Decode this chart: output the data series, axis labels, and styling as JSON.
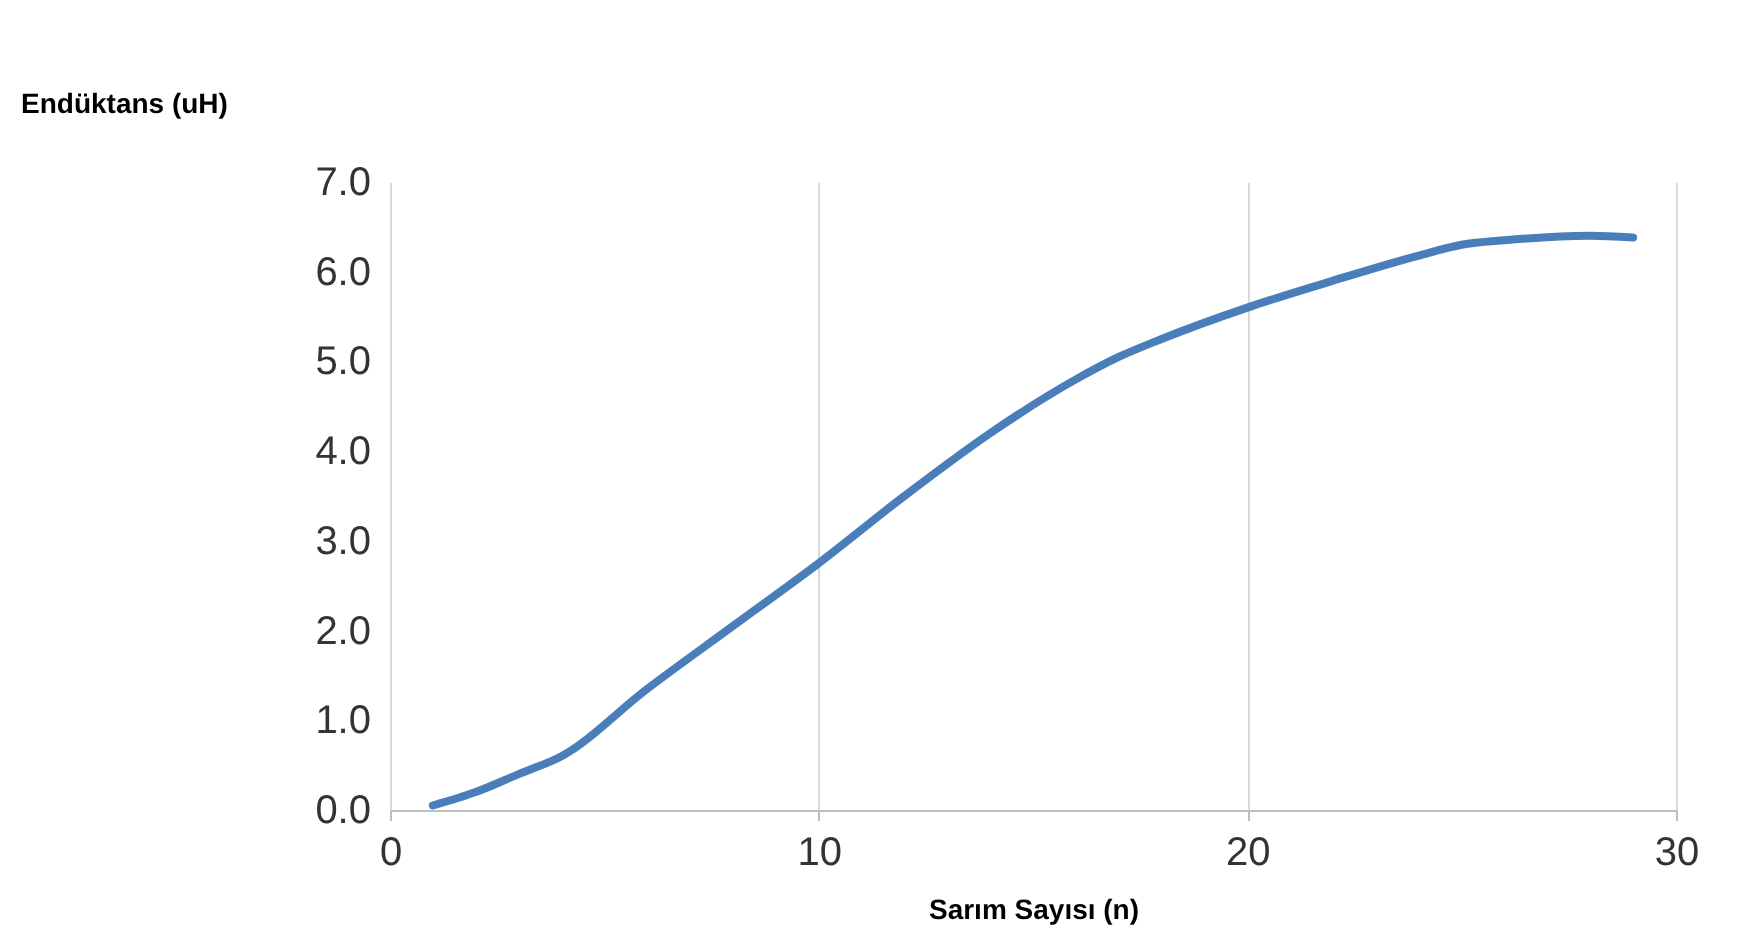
{
  "chart_data": {
    "type": "line",
    "xlabel": "Sarım Sayısı (n)",
    "ylabel": "Endüktans (uH)",
    "xlim": [
      0,
      30
    ],
    "xticks": [
      0,
      10,
      20,
      30
    ],
    "ylim": [
      0,
      7
    ],
    "yticks": [
      {
        "value": 0,
        "label": "0.0"
      },
      {
        "value": 1,
        "label": "1.0"
      },
      {
        "value": 2,
        "label": "2.0"
      },
      {
        "value": 3,
        "label": "3.0"
      },
      {
        "value": 4,
        "label": "4.0"
      },
      {
        "value": 5,
        "label": "5.0"
      },
      {
        "value": 6,
        "label": "6.0"
      },
      {
        "value": 7,
        "label": "7.0"
      }
    ],
    "grid": "x",
    "marker": "none",
    "line_style": "solid",
    "series": [
      {
        "color": "#4a7ebb",
        "x": [
          1,
          2,
          3,
          4,
          6,
          8,
          10,
          12,
          14,
          16,
          17,
          18,
          20,
          22,
          24,
          25,
          26,
          28,
          29
        ],
        "values": [
          0.05,
          0.2,
          0.4,
          0.6,
          1.35,
          2.05,
          2.75,
          3.5,
          4.2,
          4.8,
          5.05,
          5.25,
          5.6,
          5.9,
          6.18,
          6.3,
          6.35,
          6.4,
          6.38
        ]
      }
    ]
  }
}
